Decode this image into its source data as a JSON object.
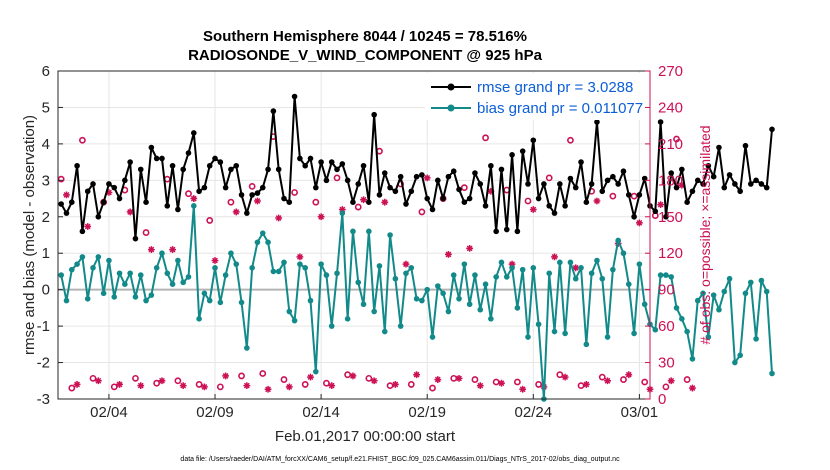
{
  "chart_data": {
    "type": "line",
    "title_line1": "Southern Hemisphere 8044 / 10245 = 78.516%",
    "title_line2": "RADIOSONDE_V_WIND_COMPONENT @ 925 hPa",
    "xlabel": "Feb.01,2017 00:00:00 start",
    "ylabel_left": "rmse and bias (model - observation)",
    "ylabel_right": "# of obs: o=possible; ×=assimilated",
    "footnote": "data file: /Users/raeder/DAI/ATM_forcXX/CAM6_setup/f.e21.FHIST_BGC.f09_025.CAM6assim.011/Diags_NTrS_2017-02/obs_diag_output.nc",
    "x_range_days": [
      0.6,
      28.5
    ],
    "x_ticks": [
      {
        "day": 3,
        "label": "02/04"
      },
      {
        "day": 8,
        "label": "02/09"
      },
      {
        "day": 13,
        "label": "02/14"
      },
      {
        "day": 18,
        "label": "02/19"
      },
      {
        "day": 23,
        "label": "02/24"
      },
      {
        "day": 28,
        "label": "03/01"
      }
    ],
    "ylim_left": [
      -3,
      6
    ],
    "yticks_left": [
      "-3",
      "-2",
      "-1",
      "0",
      "1",
      "2",
      "3",
      "4",
      "5",
      "6"
    ],
    "ylim_right": [
      0,
      270
    ],
    "yticks_right": [
      "0",
      "30",
      "60",
      "90",
      "120",
      "150",
      "180",
      "210",
      "240",
      "270"
    ],
    "grid": true,
    "legend": {
      "position": "top-right",
      "entries": [
        "rmse grand pr = 3.0288",
        "bias grand pr = 0.011077"
      ]
    },
    "colors": {
      "rmse": "#000000",
      "bias": "#138a8a",
      "obs": "#cc1155",
      "zero_line": "#b4b4b4",
      "legend_text": "#0b5ed7"
    },
    "series": [
      {
        "name": "rmse grand pr = 3.0288",
        "x_start_day": 0.75,
        "dx_days": 0.25,
        "values": [
          2.35,
          2.1,
          2.4,
          3.4,
          1.6,
          2.7,
          2.9,
          2.0,
          2.4,
          2.9,
          2.8,
          2.5,
          3.0,
          3.5,
          1.4,
          3.3,
          2.4,
          3.9,
          3.6,
          3.6,
          2.3,
          3.4,
          2.2,
          3.3,
          3.75,
          4.3,
          2.7,
          2.8,
          3.4,
          3.6,
          3.5,
          2.8,
          3.3,
          3.4,
          2.6,
          2.1,
          2.6,
          2.65,
          2.8,
          3.3,
          4.9,
          3.3,
          2.5,
          2.4,
          5.3,
          3.6,
          3.4,
          3.6,
          2.8,
          3.5,
          3.0,
          3.5,
          3.3,
          3.45,
          3.0,
          2.4,
          2.9,
          3.4,
          2.4,
          4.8,
          2.6,
          3.2,
          2.8,
          2.7,
          3.1,
          2.35,
          2.7,
          3.1,
          3.15,
          2.5,
          2.2,
          3.0,
          2.5,
          3.1,
          3.25,
          2.75,
          2.4,
          2.5,
          3.2,
          2.9,
          2.3,
          3.4,
          1.6,
          3.3,
          1.65,
          3.7,
          1.6,
          3.8,
          2.9,
          4.1,
          2.5,
          2.9,
          2.3,
          2.1,
          2.9,
          2.3,
          3.05,
          2.8,
          3.5,
          2.4,
          2.9,
          4.6,
          2.7,
          3.0,
          3.1,
          2.9,
          3.25,
          2.6,
          2.0,
          2.6,
          3.05,
          2.3,
          2.15,
          4.6,
          2.0,
          3.2,
          2.8,
          3.3,
          2.4,
          2.7,
          3.0,
          2.9,
          3.4,
          3.1,
          3.9,
          2.8,
          3.15,
          2.9,
          2.7,
          3.95,
          2.9,
          3.0,
          2.9,
          2.8,
          4.4
        ]
      },
      {
        "name": "bias grand pr = 0.011077",
        "x_start_day": 0.75,
        "dx_days": 0.25,
        "values": [
          0.4,
          -0.3,
          0.55,
          0.7,
          0.9,
          -0.25,
          0.6,
          0.9,
          -0.1,
          0.8,
          -0.2,
          0.45,
          0.15,
          0.45,
          -0.2,
          0.4,
          -0.3,
          -0.15,
          0.6,
          1.0,
          0.45,
          0.15,
          0.8,
          0.2,
          0.35,
          2.3,
          -0.8,
          -0.1,
          -0.3,
          0.6,
          -0.35,
          0.4,
          1.0,
          0.7,
          -0.35,
          -1.6,
          0.6,
          1.3,
          1.55,
          1.3,
          0.5,
          0.5,
          0.75,
          -0.6,
          -0.85,
          0.7,
          0.6,
          -0.3,
          -2.25,
          0.7,
          0.4,
          -1.0,
          0.45,
          2.1,
          -0.8,
          1.6,
          0.2,
          -0.4,
          1.6,
          -0.6,
          0.65,
          -1.15,
          1.5,
          0.3,
          -1.0,
          0.45,
          0.6,
          -0.25,
          -0.3,
          0.0,
          -1.3,
          0.1,
          -0.1,
          -0.6,
          0.4,
          -0.25,
          0.7,
          -0.4,
          0.4,
          -0.55,
          0.15,
          -0.8,
          0.35,
          0.75,
          0.35,
          0.6,
          -0.5,
          0.55,
          -1.3,
          0.6,
          -0.95,
          -3.0,
          0.45,
          -1.15,
          0.75,
          -1.2,
          0.75,
          0.3,
          0.6,
          -1.5,
          0.45,
          0.8,
          0.3,
          -1.3,
          0.55,
          1.35,
          1.0,
          0.15,
          -1.2,
          0.7,
          -0.4,
          -0.95,
          -1.1,
          0.4,
          0.4,
          0.35,
          -0.5,
          -0.8,
          -1.15,
          -1.9,
          -0.3,
          -0.1,
          -1.3,
          -0.15,
          -0.55,
          -0.05,
          0.3,
          -2.0,
          -1.8,
          -0.1,
          0.2,
          -1.35,
          0.25,
          -0.05,
          -2.3
        ]
      },
      {
        "name": "obs possible",
        "marker": "o",
        "x_start_day": 0.75,
        "dx_days": 0.5,
        "values": [
          181,
          9,
          213,
          17,
          162,
          10,
          172,
          17,
          137,
          13,
          181,
          15,
          169,
          12,
          147,
          10,
          162,
          19,
          175,
          21,
          216,
          16,
          170,
          12,
          162,
          13,
          182,
          20,
          158,
          17,
          204,
          11,
          177,
          12,
          154,
          9,
          165,
          17,
          174,
          16,
          215,
          14,
          172,
          14,
          163,
          12,
          182,
          20,
          213,
          11,
          171,
          18,
          167,
          16,
          167,
          14,
          151,
          10,
          214,
          16
        ]
      },
      {
        "name": "obs assimilated",
        "marker": "*",
        "x_start_day": 1.0,
        "dx_days": 0.5,
        "values": [
          168,
          12,
          142,
          15,
          170,
          12,
          154,
          11,
          123,
          15,
          123,
          11,
          165,
          10,
          114,
          19,
          154,
          11,
          163,
          8,
          149,
          10,
          117,
          18,
          150,
          11,
          156,
          19,
          164,
          15,
          162,
          12,
          111,
          20,
          182,
          16,
          119,
          17,
          124,
          11,
          171,
          13,
          111,
          8,
          156,
          10,
          117,
          18,
          108,
          12,
          163,
          15,
          128,
          20,
          145,
          8,
          160,
          15,
          176,
          9
        ]
      }
    ]
  }
}
